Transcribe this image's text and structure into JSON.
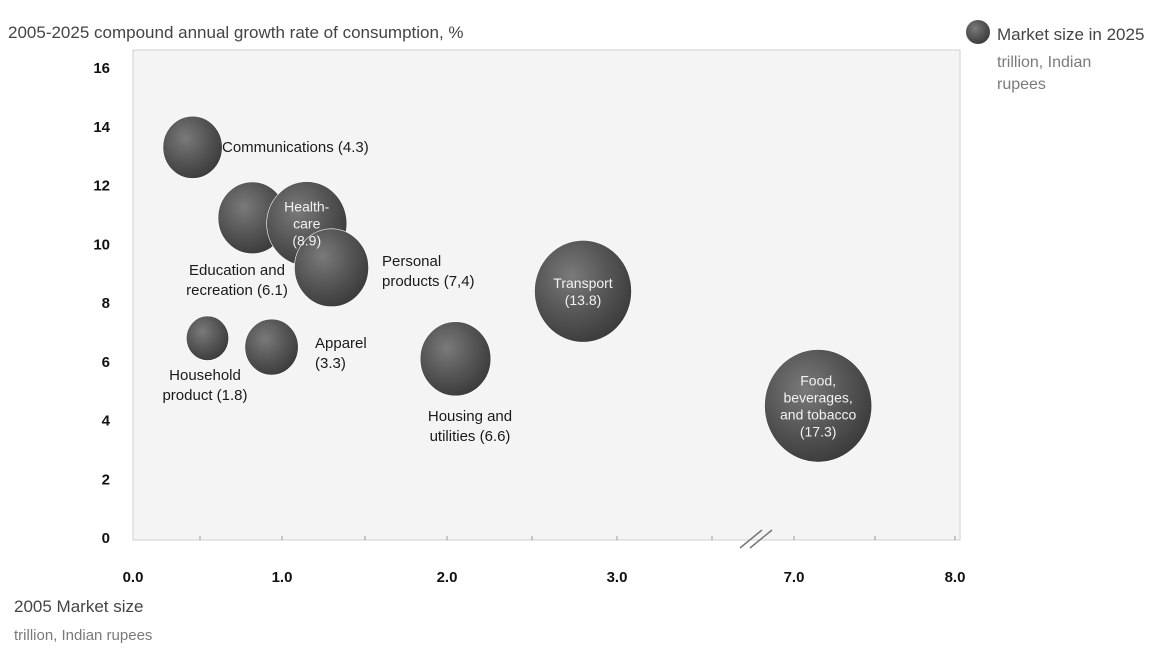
{
  "chart_data": {
    "type": "bubble",
    "title": "2005-2025 compound annual growth rate of consumption, %",
    "xlabel": "2005 Market size",
    "xlabel_sub": "trillion, Indian rupees",
    "legend": {
      "title": "Market size in 2025",
      "sub": [
        "trillion, Indian",
        "rupees"
      ],
      "placement": "top-right"
    },
    "y_ticks": [
      "16",
      "14",
      "12",
      "10",
      "8",
      "6",
      "4",
      "2",
      "0"
    ],
    "ylim": [
      0,
      16
    ],
    "x_ticks": [
      "0.0",
      "1.0",
      "2.0",
      "3.0",
      "7.0",
      "8.0"
    ],
    "x_axis_break": "between 3.0 and 7.0",
    "series": [
      {
        "name": "Communications",
        "x": 0.4,
        "y": 13.3,
        "size": 4.3,
        "label": [
          "Communications (4.3)"
        ]
      },
      {
        "name": "Education and recreation",
        "x": 0.8,
        "y": 10.9,
        "size": 6.1,
        "label": [
          "Education and",
          "recreation (6.1)"
        ]
      },
      {
        "name": "Health-care",
        "x": 1.15,
        "y": 10.7,
        "size": 8.9,
        "label": [
          "Health-",
          "care",
          "(8.9)"
        ]
      },
      {
        "name": "Personal products",
        "x": 1.3,
        "y": 9.2,
        "size": 7.4,
        "label": [
          "Personal",
          "products (7,4)"
        ]
      },
      {
        "name": "Household product",
        "x": 0.5,
        "y": 6.8,
        "size": 1.8,
        "label": [
          "Household",
          "product (1.8)"
        ]
      },
      {
        "name": "Apparel",
        "x": 0.93,
        "y": 6.5,
        "size": 3.3,
        "label": [
          "Apparel",
          "(3.3)"
        ]
      },
      {
        "name": "Housing and utilities",
        "x": 2.05,
        "y": 6.1,
        "size": 6.6,
        "label": [
          "Housing and",
          "utilities (6.6)"
        ]
      },
      {
        "name": "Transport",
        "x": 2.8,
        "y": 8.4,
        "size": 13.8,
        "label": [
          "Transport",
          "(13.8)"
        ]
      },
      {
        "name": "Food, beverages, and tobacco",
        "x": 7.15,
        "y": 4.5,
        "size": 17.3,
        "label": [
          "Food,",
          "beverages,",
          "and tobacco",
          "(17.3)"
        ]
      }
    ],
    "bubble_color": "#4a4a4a",
    "plot_background": "#f4f4f4"
  }
}
